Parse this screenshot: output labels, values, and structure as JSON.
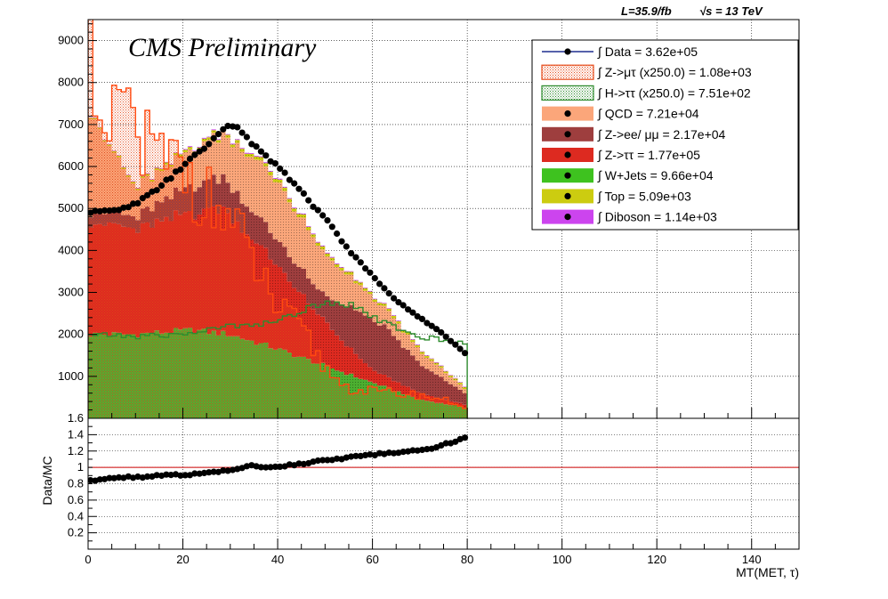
{
  "header": {
    "lumi": "L=35.9/fb",
    "energy": "√s = 13 TeV",
    "cms_label": "CMS Preliminary"
  },
  "chart_data": [
    {
      "type": "stacked-histogram",
      "xlabel": "MT(MET, τ)",
      "ylabel": "",
      "xlim": [
        0,
        150
      ],
      "ylim": [
        0,
        9500
      ],
      "x_ticks": [
        "0",
        "20",
        "40",
        "60",
        "80",
        "100",
        "120",
        "140"
      ],
      "y_ticks": [
        "1000",
        "2000",
        "3000",
        "4000",
        "5000",
        "6000",
        "7000",
        "8000",
        "9000"
      ],
      "grid": true,
      "legend_position": "top-right",
      "bin_width": 1,
      "x_data_range": [
        0,
        80
      ],
      "stack_colors": {
        "wjets": "#4caf30",
        "ztautau": "#dd2a20",
        "zll": "#9e3e3e",
        "qcd": "#fba67a",
        "top": "#cccc10",
        "diboson": "#cc44ee"
      },
      "stack_profile": {
        "wjets": [
          [
            0,
            2000
          ],
          [
            10,
            2000
          ],
          [
            22,
            2100
          ],
          [
            30,
            2000
          ],
          [
            40,
            1650
          ],
          [
            50,
            1250
          ],
          [
            60,
            850
          ],
          [
            70,
            450
          ],
          [
            80,
            250
          ]
        ],
        "ztautau": [
          [
            0,
            2700
          ],
          [
            10,
            2500
          ],
          [
            22,
            2800
          ],
          [
            28,
            3000
          ],
          [
            40,
            2000
          ],
          [
            48,
            1200
          ],
          [
            55,
            650
          ],
          [
            60,
            300
          ],
          [
            70,
            150
          ],
          [
            80,
            60
          ]
        ],
        "zll": [
          [
            0,
            250
          ],
          [
            10,
            300
          ],
          [
            20,
            600
          ],
          [
            28,
            750
          ],
          [
            40,
            600
          ],
          [
            50,
            600
          ],
          [
            57,
            1100
          ],
          [
            62,
            1200
          ],
          [
            70,
            700
          ],
          [
            80,
            250
          ]
        ],
        "qcd": [
          [
            0,
            2500
          ],
          [
            5,
            1500
          ],
          [
            10,
            700
          ],
          [
            20,
            800
          ],
          [
            28,
            1000
          ],
          [
            35,
            1300
          ],
          [
            40,
            1400
          ],
          [
            50,
            1000
          ],
          [
            60,
            500
          ],
          [
            70,
            300
          ],
          [
            80,
            100
          ]
        ],
        "top": [
          [
            0,
            30
          ],
          [
            40,
            80
          ],
          [
            80,
            40
          ]
        ],
        "diboson": [
          [
            0,
            10
          ],
          [
            40,
            20
          ],
          [
            80,
            10
          ]
        ]
      },
      "signal_mutau_profile": [
        [
          0,
          8700
        ],
        [
          2,
          8700
        ],
        [
          4,
          5500
        ],
        [
          6,
          7200
        ],
        [
          7,
          8300
        ],
        [
          8,
          6500
        ],
        [
          10,
          7400
        ],
        [
          11,
          6000
        ],
        [
          12,
          6200
        ],
        [
          13,
          7000
        ],
        [
          14,
          6000
        ],
        [
          17,
          6000
        ],
        [
          20,
          6100
        ],
        [
          25,
          5200
        ],
        [
          30,
          4700
        ],
        [
          35,
          3700
        ],
        [
          40,
          2600
        ],
        [
          45,
          2100
        ],
        [
          50,
          1200
        ],
        [
          55,
          700
        ],
        [
          60,
          650
        ],
        [
          70,
          550
        ],
        [
          75,
          450
        ],
        [
          80,
          250
        ]
      ],
      "signal_htautau_profile": [
        [
          0,
          2000
        ],
        [
          10,
          1950
        ],
        [
          20,
          2000
        ],
        [
          30,
          2200
        ],
        [
          40,
          2300
        ],
        [
          50,
          2800
        ],
        [
          56,
          2700
        ],
        [
          62,
          2300
        ],
        [
          68,
          2000
        ],
        [
          75,
          1850
        ],
        [
          80,
          1800
        ]
      ],
      "data_profile": [
        [
          0,
          4900
        ],
        [
          5,
          4950
        ],
        [
          10,
          5100
        ],
        [
          15,
          5500
        ],
        [
          20,
          6000
        ],
        [
          25,
          6500
        ],
        [
          28,
          6800
        ],
        [
          30,
          7000
        ],
        [
          32,
          6900
        ],
        [
          35,
          6500
        ],
        [
          40,
          6000
        ],
        [
          45,
          5400
        ],
        [
          48,
          5000
        ],
        [
          50,
          4800
        ],
        [
          55,
          4000
        ],
        [
          60,
          3400
        ],
        [
          65,
          2800
        ],
        [
          70,
          2400
        ],
        [
          75,
          2000
        ],
        [
          80,
          1500
        ]
      ]
    },
    {
      "type": "scatter",
      "ylabel": "Data/MC",
      "xlim": [
        0,
        150
      ],
      "ylim": [
        0,
        1.6
      ],
      "y_ticks": [
        "0.2",
        "0.4",
        "0.6",
        "0.8",
        "1",
        "1.2",
        "1.4",
        "1.6"
      ],
      "reference_line": 1,
      "ratio_profile": [
        [
          0,
          0.84
        ],
        [
          5,
          0.87
        ],
        [
          10,
          0.88
        ],
        [
          20,
          0.91
        ],
        [
          30,
          0.96
        ],
        [
          35,
          1.02
        ],
        [
          40,
          1.0
        ],
        [
          45,
          1.05
        ],
        [
          50,
          1.08
        ],
        [
          55,
          1.12
        ],
        [
          60,
          1.15
        ],
        [
          65,
          1.19
        ],
        [
          70,
          1.2
        ],
        [
          75,
          1.28
        ],
        [
          80,
          1.36
        ]
      ]
    }
  ],
  "legend": {
    "entries": [
      {
        "label": "∫ Data = 3.62e+05",
        "style": "data",
        "color": "#000000"
      },
      {
        "label": "∫ Z->μτ (x250.0) = 1.08e+03",
        "style": "hatch",
        "color": "#e64a19"
      },
      {
        "label": "∫ H->ττ (x250.0) = 7.51e+02",
        "style": "hatch",
        "color": "#2e8b2e"
      },
      {
        "label": "∫ QCD = 7.21e+04",
        "style": "fill",
        "color": "#fba67a"
      },
      {
        "label": "∫ Z->ee/ μμ = 2.17e+04",
        "style": "fill",
        "color": "#9e3e3e"
      },
      {
        "label": "∫ Z->ττ = 1.77e+05",
        "style": "fill",
        "color": "#dd2a20"
      },
      {
        "label": "∫ W+Jets = 9.66e+04",
        "style": "fill",
        "color": "#3ec21f"
      },
      {
        "label": "∫ Top = 5.09e+03",
        "style": "fill",
        "color": "#cccc10"
      },
      {
        "label": "∫ Diboson = 1.14e+03",
        "style": "fill",
        "color": "#cc44ee"
      }
    ]
  }
}
